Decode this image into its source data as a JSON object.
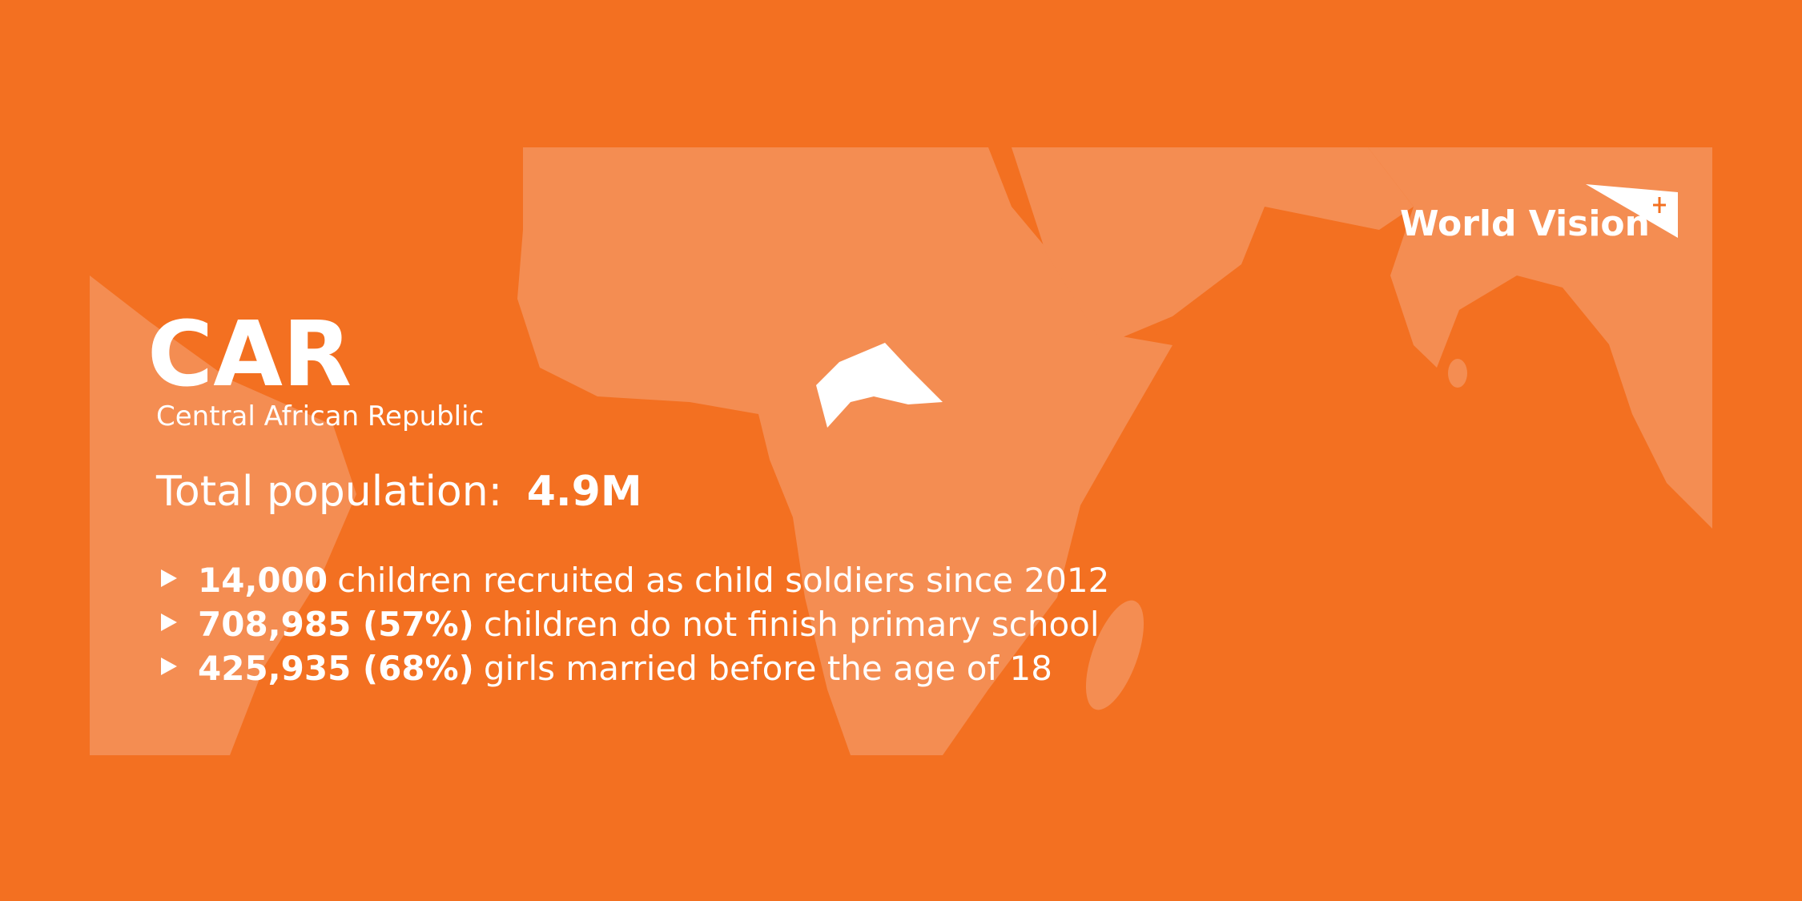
{
  "title": "CAR",
  "subtitle": "Central African Republic",
  "population": {
    "label": "Total population:",
    "value": "4.9M"
  },
  "facts": [
    {
      "highlight": "14,000",
      "text": "children recruited as child soldiers since 2012"
    },
    {
      "highlight": "708,985 (57%)",
      "text": "children do not finish primary school"
    },
    {
      "highlight": "425,935 (68%)",
      "text": "girls married before the age of 18"
    }
  ],
  "logo": "World Vision"
}
